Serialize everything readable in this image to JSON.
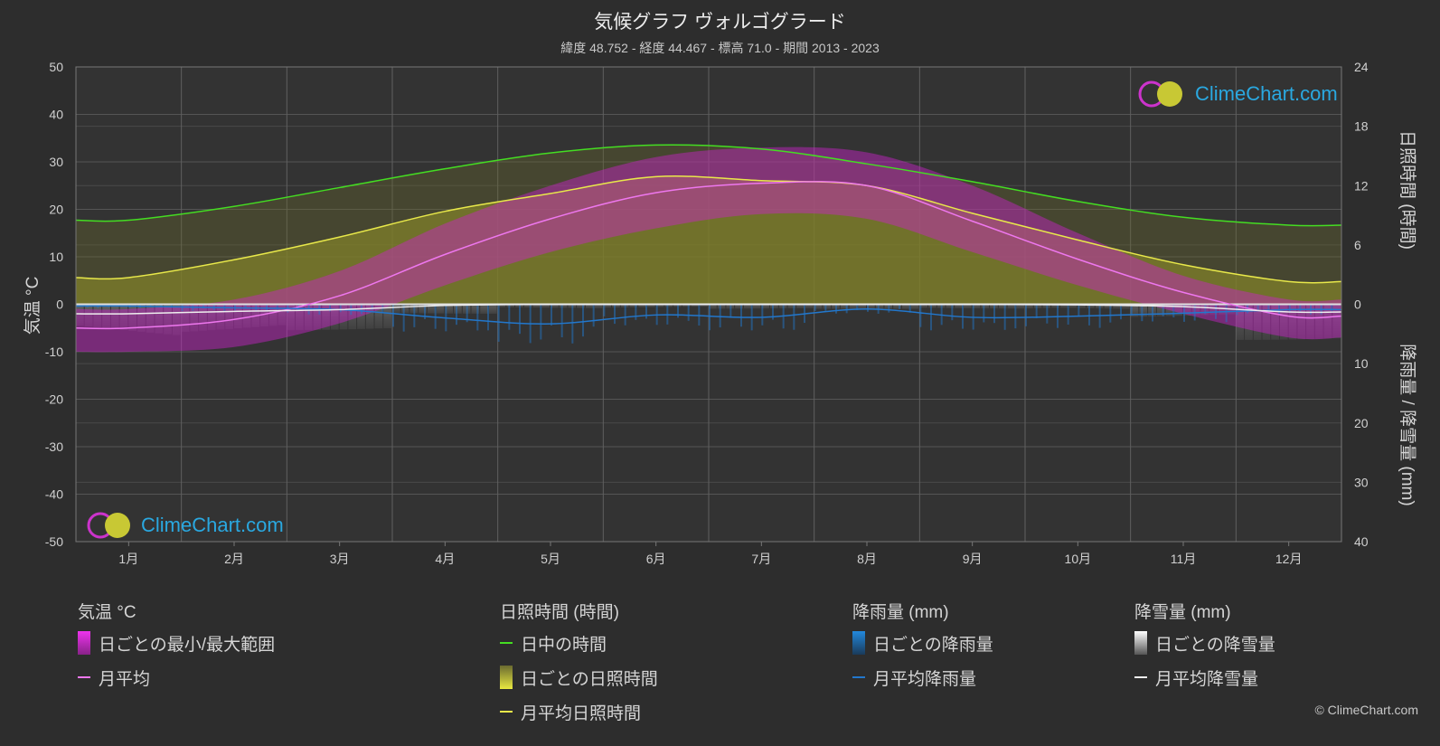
{
  "header": {
    "title": "気候グラフ ヴォルゴグラード",
    "subtitle": "緯度 48.752 - 経度 44.467 - 標高 71.0 - 期間 2013 - 2023"
  },
  "logo": {
    "text": "ClimeChart.com"
  },
  "copyright": "© ClimeChart.com",
  "axes": {
    "left_label": "気温 °C",
    "right_top_label": "日照時間 (時間)",
    "right_bottom_label": "降雨量 / 降雪量 (mm)"
  },
  "legend": {
    "temperature": {
      "heading": "気温 °C",
      "items": [
        "日ごとの最小/最大範囲",
        "月平均"
      ]
    },
    "sunshine": {
      "heading": "日照時間 (時間)",
      "items": [
        "日中の時間",
        "日ごとの日照時間",
        "月平均日照時間"
      ]
    },
    "rain": {
      "heading": "降雨量 (mm)",
      "items": [
        "日ごとの降雨量",
        "月平均降雨量"
      ]
    },
    "snow": {
      "heading": "降雪量 (mm)",
      "items": [
        "日ごとの降雪量",
        "月平均降雪量"
      ]
    }
  },
  "colors": {
    "daylight": "#44dd22",
    "sunshine_line": "#e8e84a",
    "sunshine_fill": "#8c8c2a",
    "temp_range": "#cc22cc",
    "temp_avg": "#ee77ee",
    "rain": "#2277cc",
    "snow": "#bbbbbb",
    "background": "#2d2d2d"
  },
  "chart_data": {
    "type": "line",
    "categories": [
      "1月",
      "2月",
      "3月",
      "4月",
      "5月",
      "6月",
      "7月",
      "8月",
      "9月",
      "10月",
      "11月",
      "12月"
    ],
    "y_left": {
      "label": "気温 °C",
      "ticks": [
        50,
        40,
        30,
        20,
        10,
        0,
        -10,
        -20,
        -30,
        -40,
        -50
      ],
      "range": [
        -50,
        50
      ]
    },
    "y_right_top": {
      "label": "日照時間 (時間)",
      "ticks": [
        24,
        18,
        12,
        6,
        0
      ],
      "range": [
        0,
        24
      ]
    },
    "y_right_bottom": {
      "label": "降雨量 / 降雪量 (mm)",
      "ticks": [
        0,
        10,
        20,
        30,
        40
      ],
      "range": [
        0,
        40
      ]
    },
    "series": [
      {
        "name": "日中の時間",
        "unit": "hours",
        "values": [
          8.5,
          9.9,
          11.8,
          13.7,
          15.3,
          16.1,
          15.7,
          14.2,
          12.4,
          10.4,
          8.8,
          8.0
        ]
      },
      {
        "name": "月平均日照時間",
        "unit": "hours",
        "values": [
          2.7,
          4.5,
          6.8,
          9.4,
          11.2,
          12.9,
          12.5,
          12.0,
          9.2,
          6.5,
          4.0,
          2.3
        ]
      },
      {
        "name": "月平均",
        "unit": "°C",
        "values": [
          -5.0,
          -3.2,
          1.8,
          10.5,
          18.0,
          23.5,
          25.5,
          25.0,
          17.5,
          9.5,
          2.5,
          -2.5
        ]
      },
      {
        "name": "月平均降雨量",
        "unit": "mm",
        "values": [
          0.3,
          0.6,
          0.9,
          2.3,
          3.3,
          1.8,
          2.2,
          0.8,
          2.2,
          2.0,
          1.5,
          0.9
        ]
      },
      {
        "name": "月平均降雪量",
        "unit": "mm",
        "values": [
          1.6,
          1.2,
          0.9,
          0.2,
          0.0,
          0.0,
          0.0,
          0.0,
          0.0,
          0.1,
          0.4,
          1.3
        ]
      }
    ],
    "temp_range": {
      "name": "日ごとの最小/最大範囲",
      "min": [
        -10,
        -9,
        -4,
        4,
        11,
        16,
        19,
        18,
        11,
        4,
        -2,
        -7
      ],
      "max": [
        -1,
        1,
        7,
        17,
        25,
        31,
        33,
        32,
        25,
        15,
        6,
        1
      ]
    },
    "grid": true
  }
}
